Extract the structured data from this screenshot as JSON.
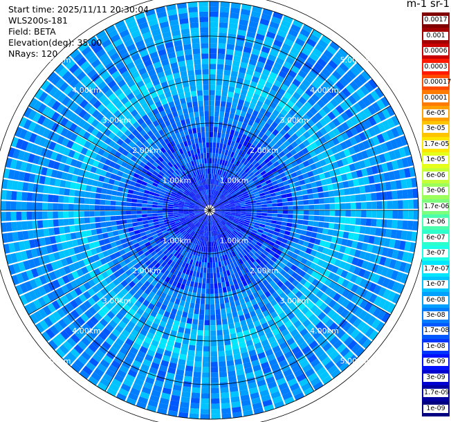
{
  "info": {
    "start_time": "Start time: 2025/11/11 20:30:04",
    "instrument": "WLS200s-181",
    "field": "Field: BETA",
    "elevation": "Elevation(deg): 35.00",
    "nrays": "NRays: 120"
  },
  "colorbar": {
    "unit": "m-1 sr-1",
    "labels": [
      "0.0017",
      "0.001",
      "0.0006",
      "0.0003",
      "0.00017",
      "0.0001",
      "6e-05",
      "3e-05",
      "1.7e-05",
      "1e-05",
      "6e-06",
      "3e-06",
      "1.7e-06",
      "1e-06",
      "6e-07",
      "3e-07",
      "1.7e-07",
      "1e-07",
      "6e-08",
      "3e-08",
      "1.7e-08",
      "1e-08",
      "6e-09",
      "3e-09",
      "1.7e-09",
      "1e-09"
    ],
    "colors": [
      "#800000",
      "#a00000",
      "#c80000",
      "#ff1a00",
      "#ff4a00",
      "#ff7a00",
      "#ffa000",
      "#ffc400",
      "#ffe600",
      "#e6ff1a",
      "#c4ff3a",
      "#9cff5c",
      "#7cff7c",
      "#4cffac",
      "#2cffcc",
      "#1cffe6",
      "#00e6ff",
      "#00c4ff",
      "#00a0ff",
      "#007cff",
      "#0058ff",
      "#0034ff",
      "#0010ff",
      "#0000d0",
      "#0000a0",
      "#000080"
    ]
  },
  "chart_data": {
    "type": "heatmap",
    "projection": "polar",
    "n_rays": 120,
    "ring_labels": [
      "1.00km",
      "2.00km",
      "3.00km",
      "4.00km",
      "5.00km"
    ],
    "ring_ranges_km": [
      1,
      2,
      3,
      4,
      5
    ],
    "max_range_km": 5.2,
    "color_scale": "log",
    "scale_range": [
      1e-09,
      0.0017
    ]
  }
}
